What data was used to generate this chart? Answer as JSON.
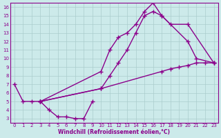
{
  "xlabel": "Windchill (Refroidissement éolien,°C)",
  "xlim": [
    -0.5,
    23.5
  ],
  "ylim": [
    2.5,
    16.5
  ],
  "xticks": [
    0,
    1,
    2,
    3,
    4,
    5,
    6,
    7,
    8,
    9,
    10,
    11,
    12,
    13,
    14,
    15,
    16,
    17,
    18,
    19,
    20,
    21,
    22,
    23
  ],
  "yticks": [
    3,
    4,
    5,
    6,
    7,
    8,
    9,
    10,
    11,
    12,
    13,
    14,
    15,
    16
  ],
  "background_color": "#cceaea",
  "grid_color": "#aacccc",
  "line_color": "#8b008b",
  "line1_x": [
    0,
    1,
    2,
    3,
    4,
    5,
    6,
    7,
    8,
    9
  ],
  "line1_y": [
    7.0,
    5.0,
    5.0,
    5.0,
    4.0,
    3.2,
    3.2,
    3.0,
    3.0,
    5.0
  ],
  "line2_x": [
    3,
    10,
    11,
    12,
    13,
    14,
    15,
    16,
    17,
    20,
    21,
    23
  ],
  "line2_y": [
    5.0,
    8.5,
    11.0,
    12.5,
    13.0,
    14.0,
    15.5,
    16.5,
    15.0,
    12.0,
    10.0,
    9.5
  ],
  "line3_x": [
    3,
    10,
    11,
    12,
    13,
    14,
    15,
    16,
    17,
    18,
    20,
    23
  ],
  "line3_y": [
    5.0,
    6.5,
    8.0,
    9.5,
    11.0,
    13.0,
    15.0,
    15.5,
    15.0,
    14.0,
    14.0,
    9.5
  ],
  "line4_x": [
    3,
    10,
    17,
    18,
    19,
    20,
    21,
    22,
    23
  ],
  "line4_y": [
    5.0,
    6.5,
    8.5,
    8.8,
    9.0,
    9.2,
    9.5,
    9.5,
    9.5
  ],
  "marker": "+",
  "markersize": 4,
  "linewidth": 1.0
}
